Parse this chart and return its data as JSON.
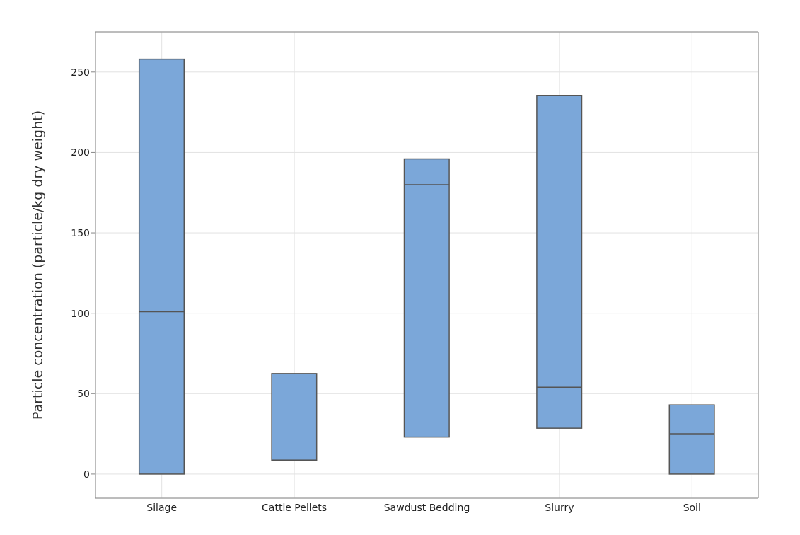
{
  "chart_data": {
    "type": "box",
    "ylabel": "Particle concentration (particle/kg dry weight)",
    "categories": [
      "Silage",
      "Cattle Pellets",
      "Sawdust Bedding",
      "Slurry",
      "Soil"
    ],
    "boxes": [
      {
        "low": 0,
        "q1": 0,
        "median": 101,
        "q3": 258,
        "high": 258
      },
      {
        "low": 8.5,
        "q1": 8.5,
        "median": 9.3,
        "q3": 62.5,
        "high": 62.5
      },
      {
        "low": 23,
        "q1": 23,
        "median": 180,
        "q3": 196,
        "high": 196
      },
      {
        "low": 28.5,
        "q1": 28.5,
        "median": 54,
        "q3": 235.5,
        "high": 235.5
      },
      {
        "low": 0,
        "q1": 0,
        "median": 25,
        "q3": 43,
        "high": 43
      }
    ],
    "color": "#7ba7d9",
    "ylim": [
      -15,
      275
    ],
    "yticks": [
      0,
      50,
      100,
      150,
      200,
      250
    ],
    "grid": true
  }
}
